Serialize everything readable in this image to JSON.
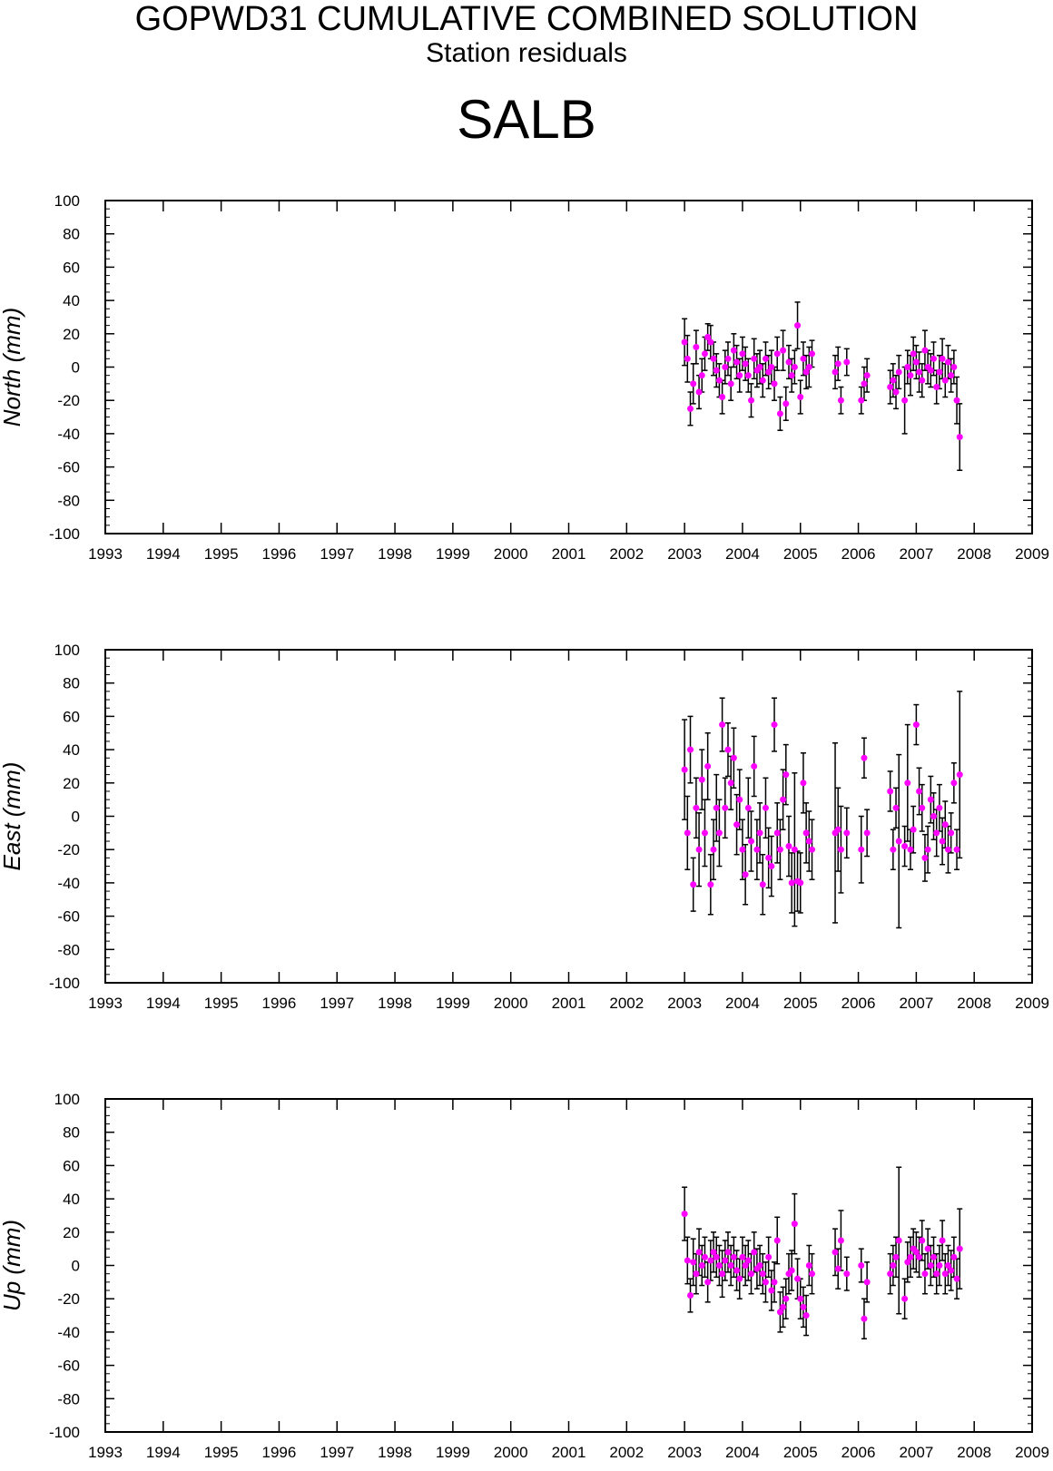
{
  "header": {
    "title": "GOPWD31 CUMULATIVE COMBINED SOLUTION",
    "subtitle": "Station residuals",
    "station": "SALB"
  },
  "colors": {
    "marker": "#ff00ff",
    "errorbar": "#000000",
    "axis": "#000000"
  },
  "chart_data": [
    {
      "type": "scatter",
      "ylabel": "North (mm)",
      "xlim": [
        1993,
        2009
      ],
      "ylim": [
        -100,
        100
      ],
      "x_ticks": [
        1993,
        1994,
        1995,
        1996,
        1997,
        1998,
        1999,
        2000,
        2001,
        2002,
        2003,
        2004,
        2005,
        2006,
        2007,
        2008,
        2009
      ],
      "y_ticks": [
        -100,
        -80,
        -60,
        -40,
        -20,
        0,
        20,
        40,
        60,
        80,
        100
      ],
      "grid": false,
      "series": [
        {
          "marker": "circle",
          "error_bars": true,
          "x": [
            2003.0,
            2003.05,
            2003.1,
            2003.15,
            2003.2,
            2003.25,
            2003.3,
            2003.35,
            2003.4,
            2003.45,
            2003.5,
            2003.55,
            2003.6,
            2003.65,
            2003.7,
            2003.75,
            2003.8,
            2003.85,
            2003.9,
            2003.95,
            2004.0,
            2004.05,
            2004.1,
            2004.15,
            2004.2,
            2004.25,
            2004.3,
            2004.35,
            2004.4,
            2004.45,
            2004.5,
            2004.55,
            2004.6,
            2004.65,
            2004.7,
            2004.75,
            2004.8,
            2004.85,
            2004.9,
            2004.95,
            2005.0,
            2005.05,
            2005.1,
            2005.15,
            2005.2,
            2005.6,
            2005.65,
            2005.7,
            2005.8,
            2006.05,
            2006.1,
            2006.15,
            2006.55,
            2006.6,
            2006.65,
            2006.7,
            2006.8,
            2006.85,
            2006.9,
            2006.95,
            2007.0,
            2007.05,
            2007.1,
            2007.15,
            2007.2,
            2007.25,
            2007.3,
            2007.35,
            2007.4,
            2007.45,
            2007.5,
            2007.55,
            2007.6,
            2007.65,
            2007.7,
            2007.75
          ],
          "y": [
            15,
            5,
            -25,
            -10,
            12,
            -15,
            -5,
            8,
            18,
            15,
            5,
            -2,
            -8,
            -18,
            0,
            5,
            -10,
            10,
            3,
            -5,
            8,
            2,
            -5,
            -20,
            5,
            -2,
            0,
            -8,
            5,
            -3,
            0,
            -10,
            8,
            -28,
            10,
            -22,
            3,
            -5,
            0,
            25,
            -18,
            5,
            -3,
            0,
            8,
            -3,
            2,
            -20,
            3,
            -20,
            -10,
            -5,
            -12,
            -8,
            -15,
            -3,
            -20,
            0,
            -5,
            8,
            3,
            -3,
            -8,
            10,
            0,
            -2,
            5,
            -12,
            -3,
            5,
            -8,
            3,
            -5,
            0,
            -20,
            -42
          ],
          "err": [
            14,
            14,
            10,
            12,
            10,
            10,
            10,
            10,
            8,
            10,
            10,
            10,
            10,
            10,
            10,
            10,
            10,
            10,
            10,
            10,
            10,
            10,
            10,
            10,
            12,
            10,
            10,
            10,
            10,
            10,
            10,
            10,
            10,
            10,
            12,
            10,
            10,
            10,
            10,
            14,
            10,
            10,
            10,
            12,
            8,
            10,
            10,
            8,
            8,
            8,
            10,
            10,
            10,
            10,
            10,
            10,
            20,
            10,
            12,
            10,
            10,
            12,
            10,
            12,
            10,
            10,
            10,
            10,
            10,
            12,
            10,
            10,
            10,
            10,
            14,
            20
          ]
        }
      ]
    },
    {
      "type": "scatter",
      "ylabel": "East (mm)",
      "xlim": [
        1993,
        2009
      ],
      "ylim": [
        -100,
        100
      ],
      "x_ticks": [
        1993,
        1994,
        1995,
        1996,
        1997,
        1998,
        1999,
        2000,
        2001,
        2002,
        2003,
        2004,
        2005,
        2006,
        2007,
        2008,
        2009
      ],
      "y_ticks": [
        -100,
        -80,
        -60,
        -40,
        -20,
        0,
        20,
        40,
        60,
        80,
        100
      ],
      "grid": false,
      "series": [
        {
          "marker": "circle",
          "error_bars": true,
          "x": [
            2003.0,
            2003.05,
            2003.1,
            2003.15,
            2003.2,
            2003.25,
            2003.3,
            2003.35,
            2003.4,
            2003.45,
            2003.5,
            2003.55,
            2003.6,
            2003.65,
            2003.7,
            2003.75,
            2003.8,
            2003.85,
            2003.9,
            2003.95,
            2004.0,
            2004.05,
            2004.1,
            2004.15,
            2004.2,
            2004.25,
            2004.3,
            2004.35,
            2004.4,
            2004.45,
            2004.5,
            2004.55,
            2004.6,
            2004.65,
            2004.7,
            2004.75,
            2004.8,
            2004.85,
            2004.9,
            2004.95,
            2005.0,
            2005.05,
            2005.1,
            2005.15,
            2005.2,
            2005.6,
            2005.65,
            2005.7,
            2005.8,
            2006.05,
            2006.1,
            2006.15,
            2006.55,
            2006.6,
            2006.65,
            2006.7,
            2006.8,
            2006.85,
            2006.9,
            2006.95,
            2007.0,
            2007.05,
            2007.1,
            2007.15,
            2007.2,
            2007.25,
            2007.3,
            2007.35,
            2007.4,
            2007.45,
            2007.5,
            2007.55,
            2007.6,
            2007.65,
            2007.7,
            2007.75
          ],
          "y": [
            28,
            -10,
            40,
            -41,
            5,
            -20,
            22,
            -10,
            30,
            -41,
            -20,
            5,
            -10,
            55,
            5,
            40,
            20,
            35,
            -5,
            10,
            -20,
            -35,
            5,
            -15,
            30,
            -20,
            -10,
            -41,
            5,
            -25,
            -30,
            55,
            -10,
            -20,
            10,
            25,
            -18,
            -40,
            -20,
            -39,
            -40,
            20,
            -10,
            -15,
            -20,
            -10,
            -8,
            -20,
            -10,
            -20,
            35,
            -10,
            15,
            -20,
            5,
            -15,
            -18,
            20,
            -20,
            -8,
            55,
            15,
            5,
            -25,
            -20,
            10,
            0,
            -10,
            5,
            -15,
            -5,
            -20,
            -10,
            20,
            -20,
            25
          ],
          "err": [
            30,
            22,
            20,
            16,
            18,
            22,
            18,
            20,
            20,
            18,
            18,
            20,
            20,
            16,
            18,
            16,
            16,
            18,
            18,
            18,
            18,
            18,
            18,
            18,
            18,
            18,
            18,
            18,
            18,
            18,
            18,
            16,
            18,
            18,
            18,
            18,
            18,
            18,
            46,
            18,
            18,
            18,
            18,
            18,
            18,
            54,
            25,
            26,
            15,
            20,
            12,
            14,
            12,
            12,
            12,
            52,
            12,
            35,
            12,
            14,
            12,
            14,
            14,
            14,
            14,
            14,
            14,
            14,
            14,
            14,
            14,
            14,
            12,
            12,
            12,
            50
          ]
        }
      ]
    },
    {
      "type": "scatter",
      "ylabel": "Up (mm)",
      "xlim": [
        1993,
        2009
      ],
      "ylim": [
        -100,
        100
      ],
      "x_ticks": [
        1993,
        1994,
        1995,
        1996,
        1997,
        1998,
        1999,
        2000,
        2001,
        2002,
        2003,
        2004,
        2005,
        2006,
        2007,
        2008,
        2009
      ],
      "y_ticks": [
        -100,
        -80,
        -60,
        -40,
        -20,
        0,
        20,
        40,
        60,
        80,
        100
      ],
      "grid": false,
      "series": [
        {
          "marker": "circle",
          "error_bars": true,
          "x": [
            2003.0,
            2003.05,
            2003.1,
            2003.15,
            2003.2,
            2003.25,
            2003.3,
            2003.35,
            2003.4,
            2003.45,
            2003.5,
            2003.55,
            2003.6,
            2003.65,
            2003.7,
            2003.75,
            2003.8,
            2003.85,
            2003.9,
            2003.95,
            2004.0,
            2004.05,
            2004.1,
            2004.15,
            2004.2,
            2004.25,
            2004.3,
            2004.35,
            2004.4,
            2004.45,
            2004.5,
            2004.55,
            2004.6,
            2004.65,
            2004.7,
            2004.75,
            2004.8,
            2004.85,
            2004.9,
            2004.95,
            2005.0,
            2005.05,
            2005.1,
            2005.15,
            2005.2,
            2005.6,
            2005.65,
            2005.7,
            2005.8,
            2006.05,
            2006.1,
            2006.15,
            2006.55,
            2006.6,
            2006.65,
            2006.7,
            2006.8,
            2006.85,
            2006.9,
            2006.95,
            2007.0,
            2007.05,
            2007.1,
            2007.15,
            2007.2,
            2007.25,
            2007.3,
            2007.35,
            2007.4,
            2007.45,
            2007.5,
            2007.55,
            2007.6,
            2007.65,
            2007.7,
            2007.75
          ],
          "y": [
            31,
            3,
            -18,
            2,
            -5,
            8,
            0,
            5,
            -10,
            3,
            8,
            5,
            0,
            -5,
            3,
            8,
            0,
            5,
            -3,
            -8,
            5,
            0,
            3,
            -5,
            8,
            -2,
            0,
            -5,
            -10,
            5,
            -15,
            -10,
            15,
            -28,
            -25,
            -20,
            -5,
            -3,
            25,
            -8,
            -20,
            -25,
            -30,
            0,
            -5,
            8,
            -2,
            15,
            -5,
            0,
            -32,
            -10,
            -5,
            0,
            5,
            15,
            -20,
            2,
            5,
            10,
            8,
            5,
            15,
            -5,
            10,
            0,
            5,
            -5,
            0,
            15,
            -5,
            0,
            -3,
            5,
            -8,
            10
          ],
          "err": [
            16,
            14,
            10,
            14,
            12,
            14,
            12,
            12,
            12,
            12,
            12,
            12,
            12,
            14,
            12,
            12,
            12,
            12,
            12,
            12,
            12,
            12,
            12,
            12,
            12,
            12,
            12,
            12,
            12,
            12,
            12,
            12,
            14,
            12,
            12,
            12,
            12,
            12,
            18,
            12,
            12,
            12,
            12,
            12,
            12,
            14,
            12,
            18,
            10,
            10,
            12,
            12,
            12,
            12,
            12,
            44,
            12,
            12,
            12,
            12,
            12,
            12,
            12,
            12,
            12,
            12,
            12,
            12,
            12,
            12,
            12,
            12,
            12,
            12,
            12,
            24
          ]
        }
      ]
    }
  ]
}
